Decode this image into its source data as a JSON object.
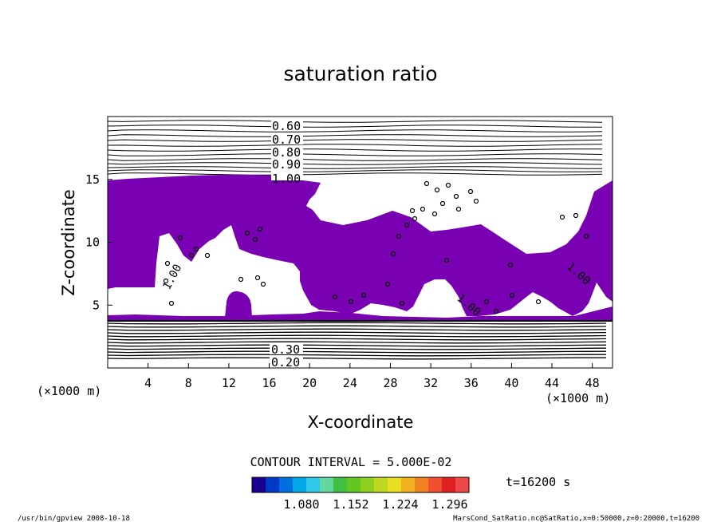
{
  "chart_data": {
    "type": "heatmap",
    "title": "saturation ratio",
    "xlabel": "X-coordinate",
    "ylabel": "Z-coordinate",
    "x_unit": "(×1000 m)",
    "z_unit": "(×1000 m)",
    "xlim": [
      0,
      50
    ],
    "ylim": [
      0,
      20
    ],
    "x_ticks": [
      4,
      8,
      12,
      16,
      20,
      24,
      28,
      32,
      36,
      40,
      44,
      48
    ],
    "y_ticks": [
      5,
      10,
      15
    ],
    "contour_interval_text": "CONTOUR INTERVAL = 5.000E-02",
    "time_text": "t=16200 s",
    "upper_contour_labels": [
      "0.60",
      "0.70",
      "0.80",
      "0.90",
      "1.00"
    ],
    "lower_contour_labels": [
      "0.30",
      "0.20"
    ],
    "inline_contour_labels": [
      "1.00",
      "1.00",
      "1.00"
    ],
    "supersaturated_fill_color": "#7a00b4",
    "colorbar": {
      "colors": [
        "#1a0090",
        "#0038c8",
        "#0070e0",
        "#00a8e8",
        "#30c8e8",
        "#60d8a0",
        "#40c040",
        "#60c820",
        "#90d020",
        "#c0d820",
        "#e8e020",
        "#f0b020",
        "#f08020",
        "#f05030",
        "#e02020",
        "#f04848"
      ],
      "labels": [
        "1.080",
        "1.152",
        "1.224",
        "1.296"
      ]
    },
    "footer_left": "/usr/bin/gpview   2008-10-18",
    "footer_right": "MarsCond_SatRatio.nc@SatRatio,x=0:50000,z=0:20000,t=16200"
  }
}
